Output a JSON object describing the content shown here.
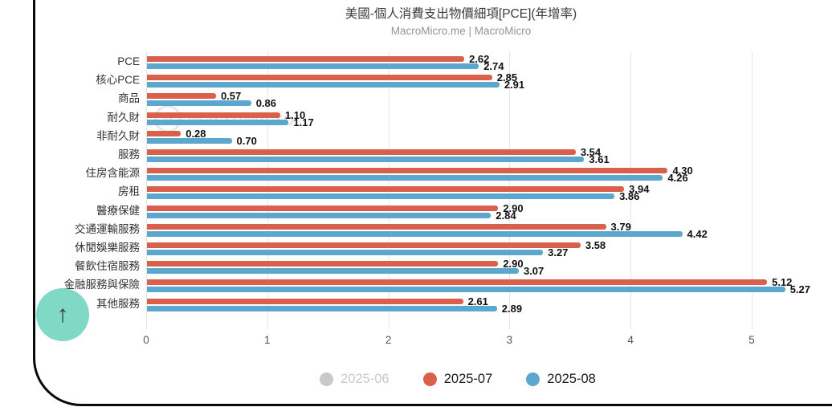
{
  "title": "美國-個人消費支出物價細項[PCE](年增率)",
  "subtitle": "MacroMicro.me | MacroMicro",
  "watermark": {
    "logo_letter": "M",
    "text": "MacroMicro"
  },
  "scroll_top": {
    "icon": "↑"
  },
  "colors": {
    "series_2025_07": "#d9604a",
    "series_2025_08": "#5ba7cd",
    "inactive_gray": "#c9c9c9",
    "grid": "#e7e7e7",
    "scroll_button": "#7fd9c4"
  },
  "legend": [
    {
      "label": "2025-06",
      "color": "#c9c9c9",
      "text_color": "#c9c9c9",
      "active": false
    },
    {
      "label": "2025-07",
      "color": "#d9604a",
      "text_color": "#1a1a1a",
      "active": true
    },
    {
      "label": "2025-08",
      "color": "#5ba7cd",
      "text_color": "#1a1a1a",
      "active": true
    }
  ],
  "chart_data": {
    "type": "bar",
    "orientation": "horizontal",
    "title": "美國-個人消費支出物價細項[PCE](年增率)",
    "subtitle": "MacroMicro.me | MacroMicro",
    "categories": [
      "PCE",
      "核心PCE",
      "商品",
      "耐久財",
      "非耐久財",
      "服務",
      "住房含能源",
      "房租",
      "醫療保健",
      "交通運輸服務",
      "休閒娛樂服務",
      "餐飲住宿服務",
      "金融服務與保險",
      "其他服務"
    ],
    "series": [
      {
        "name": "2025-07",
        "color": "#d9604a",
        "values": [
          2.62,
          2.85,
          0.57,
          1.1,
          0.28,
          3.54,
          4.3,
          3.94,
          2.9,
          3.79,
          3.58,
          2.9,
          5.12,
          2.61
        ]
      },
      {
        "name": "2025-08",
        "color": "#5ba7cd",
        "values": [
          2.74,
          2.91,
          0.86,
          1.17,
          0.7,
          3.61,
          4.26,
          3.86,
          2.84,
          4.42,
          3.27,
          3.07,
          5.27,
          2.89
        ]
      }
    ],
    "hidden_series": [
      "2025-06"
    ],
    "xlim": [
      0,
      5
    ],
    "xticks": [
      0,
      1,
      2,
      3,
      4,
      5
    ],
    "grid": true,
    "legend_position": "bottom",
    "value_label_decimals": 2
  }
}
